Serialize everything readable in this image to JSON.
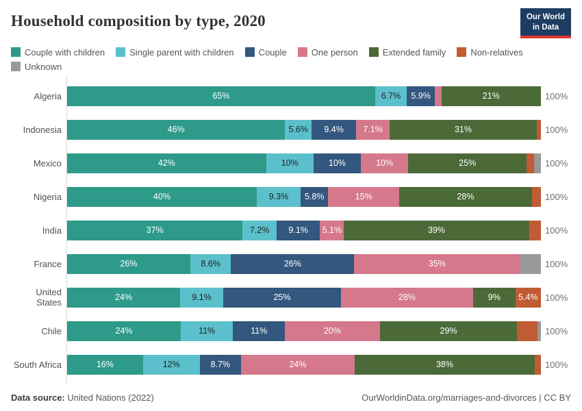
{
  "header": {
    "title": "Household composition by type, 2020",
    "logo": {
      "line1": "Our World",
      "line2": "in Data",
      "bg_color": "#1d3d63",
      "accent_color": "#e0372e"
    }
  },
  "chart_data": {
    "type": "bar",
    "stacked": true,
    "horizontal": true,
    "unit": "%",
    "xlim": [
      0,
      100
    ],
    "grid": false,
    "legend_position": "top",
    "label_min_value": 5,
    "total_label": "100%",
    "categories": [
      "Algeria",
      "Indonesia",
      "Mexico",
      "Nigeria",
      "India",
      "France",
      "United States",
      "Chile",
      "South Africa"
    ],
    "series": [
      {
        "name": "Couple with children",
        "color": "#2e9a8a",
        "label_color": "#ffffff",
        "values": [
          65,
          46,
          42,
          40,
          37,
          26,
          24,
          24,
          16
        ]
      },
      {
        "name": "Single parent with children",
        "color": "#5bc0cc",
        "label_color": "#222222",
        "values": [
          6.7,
          5.6,
          10,
          9.3,
          7.2,
          8.6,
          9.1,
          11,
          12
        ]
      },
      {
        "name": "Couple",
        "color": "#33577e",
        "label_color": "#ffffff",
        "values": [
          5.9,
          9.4,
          10,
          5.8,
          9.1,
          26,
          25,
          11,
          8.7
        ]
      },
      {
        "name": "One person",
        "color": "#d5788c",
        "label_color": "#ffffff",
        "values": [
          1.4,
          7.1,
          10,
          15,
          5.1,
          35,
          28,
          20,
          24
        ]
      },
      {
        "name": "Extended family",
        "color": "#4b6a38",
        "label_color": "#ffffff",
        "values": [
          21,
          31,
          25,
          28,
          39,
          0,
          9,
          29,
          38
        ]
      },
      {
        "name": "Non-relatives",
        "color": "#c05b33",
        "label_color": "#ffffff",
        "values": [
          0,
          0.9,
          1.5,
          1.9,
          2.5,
          0,
          5.4,
          4.3,
          1.3
        ]
      },
      {
        "name": "Unknown",
        "color": "#999999",
        "label_color": "#ffffff",
        "values": [
          0,
          0,
          1.5,
          0,
          0,
          4.4,
          0,
          0.7,
          0
        ]
      }
    ]
  },
  "footer": {
    "source_label": "Data source:",
    "source_text": "United Nations (2022)",
    "link_text": "OurWorldinData.org/marriages-and-divorces | CC BY"
  }
}
